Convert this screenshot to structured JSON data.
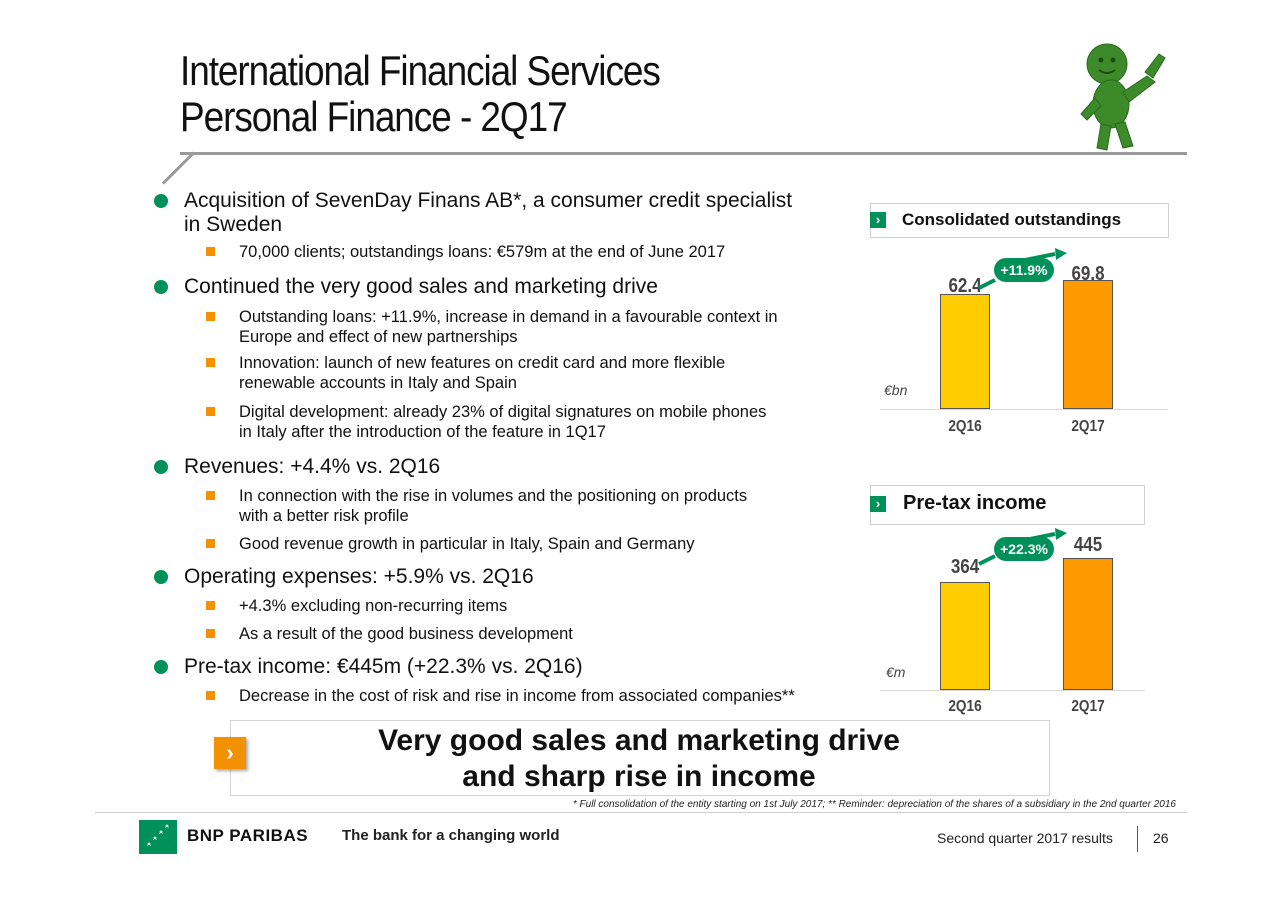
{
  "title": {
    "line1": "International Financial Services",
    "line2": "Personal Finance - 2Q17"
  },
  "mascot": {
    "icon": "green-mascot-figure"
  },
  "bullets": [
    {
      "text_line1": "Acquisition of SevenDay Finans AB*, a consumer credit specialist",
      "text_line2": "in Sweden",
      "subs": [
        {
          "line1": "70,000 clients; outstandings loans: €579m at the end of June 2017"
        }
      ]
    },
    {
      "text_line1": "Continued the very good sales and marketing drive",
      "subs": [
        {
          "line1": "Outstanding loans: +11.9%, increase in demand in a favourable context in",
          "line2": "Europe and effect of new partnerships"
        },
        {
          "line1": "Innovation: launch of new features on credit card and more flexible",
          "line2": "renewable accounts in Italy and Spain"
        },
        {
          "line1": "Digital development: already 23% of digital signatures on mobile phones",
          "line2": "in Italy after the introduction of the feature in 1Q17"
        }
      ]
    },
    {
      "text_line1": "Revenues: +4.4% vs. 2Q16",
      "subs": [
        {
          "line1": "In connection with the rise in volumes and the positioning on products",
          "line2": "with a better risk profile"
        },
        {
          "line1": "Good revenue growth in particular in Italy, Spain and Germany"
        }
      ]
    },
    {
      "text_line1": "Operating expenses: +5.9% vs. 2Q16",
      "subs": [
        {
          "line1": "+4.3% excluding non-recurring items"
        },
        {
          "line1": "As a result of the good business development"
        }
      ]
    },
    {
      "text_line1": "Pre-tax income: €445m (+22.3% vs. 2Q16)",
      "subs": [
        {
          "line1": "Decrease in the cost of risk and rise in income from associated companies**"
        }
      ]
    }
  ],
  "chart_data": [
    {
      "type": "bar",
      "title": "Consolidated outstandings",
      "unit": "€bn",
      "categories": [
        "2Q16",
        "2Q17"
      ],
      "values": [
        62.4,
        69.8
      ],
      "value_labels": [
        "62.4",
        "69.8"
      ],
      "growth_label": "+11.9%",
      "bar_colors": [
        "#ffcc00",
        "#ff9900"
      ]
    },
    {
      "type": "bar",
      "title": "Pre-tax income",
      "unit": "€m",
      "categories": [
        "2Q16",
        "2Q17"
      ],
      "values": [
        364,
        445
      ],
      "value_labels": [
        "364",
        "445"
      ],
      "growth_label": "+22.3%",
      "bar_colors": [
        "#ffcc00",
        "#ff9900"
      ]
    }
  ],
  "conclusion": {
    "line1": "Very good sales and marketing drive",
    "line2": "and sharp rise in income"
  },
  "footnote": "* Full consolidation of the entity starting on 1st July 2017; ** Reminder: depreciation of the shares of a subsidiary in the 2nd quarter 2016",
  "footer": {
    "brand": "BNP PARIBAS",
    "tagline": "The bank for a changing world",
    "report": "Second quarter 2017 results",
    "page": "26"
  },
  "colors": {
    "accent_green": "#00915a",
    "accent_orange": "#f39200",
    "bar_2q16": "#ffcc00",
    "bar_2q17": "#ff9900"
  }
}
